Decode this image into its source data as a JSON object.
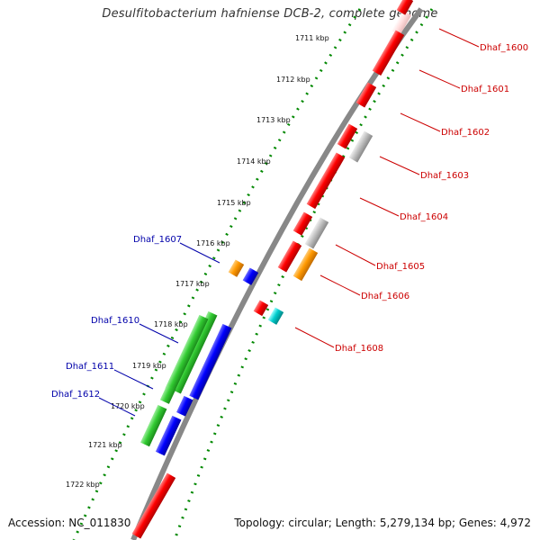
{
  "title": "Desulfitobacterium hafniense DCB-2, complete genome",
  "footer": {
    "accession": "Accession: NC_011830",
    "topology": "Topology: circular; Length: 5,279,134 bp; Genes: 4,972"
  },
  "ticks": [
    "1711 kbp",
    "1712 kbp",
    "1713 kbp",
    "1714 kbp",
    "1715 kbp",
    "1716 kbp",
    "1717 kbp",
    "1718 kbp",
    "1719 kbp",
    "1720 kbp",
    "1721 kbp",
    "1722 kbp"
  ],
  "gene_labels_forward": [
    "Dhaf_1600",
    "Dhaf_1601",
    "Dhaf_1602",
    "Dhaf_1603",
    "Dhaf_1604",
    "Dhaf_1605",
    "Dhaf_1606",
    "Dhaf_1608"
  ],
  "gene_labels_reverse": [
    "Dhaf_1607",
    "Dhaf_1610",
    "Dhaf_1611",
    "Dhaf_1612"
  ],
  "colors": {
    "forward_gene": "#ff0000",
    "reverse_gene": "#0000ff",
    "green_feature": "#33cc33",
    "orange_feature": "#ff9900",
    "cyan_feature": "#00cccc",
    "grey_feature": "#c0c0c0",
    "pale_feature": "#ffdddd",
    "dotted_track": "#008800",
    "backbone": "#888888",
    "label_forward": "#cc0000",
    "label_reverse": "#0000aa"
  }
}
